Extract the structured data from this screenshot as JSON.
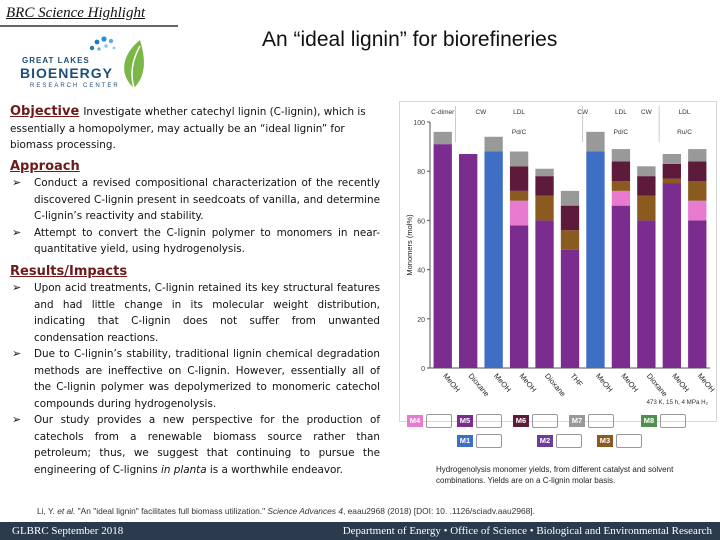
{
  "header": {
    "label": "BRC Science Highlight",
    "title": "An “ideal lignin” for biorefineries"
  },
  "logo": {
    "line1": "GREAT LAKES",
    "line2": "BIOENERGY",
    "line3": "RESEARCH CENTER"
  },
  "objective": {
    "heading": "Objective",
    "text": "Investigate whether catechyl lignin (C-lignin), which is essentially a homopolymer, may actually be an “ideal lignin” for biomass processing."
  },
  "approach": {
    "heading": "Approach",
    "bullets": [
      "Conduct a revised compositional characterization of the recently discovered C-lignin present in seedcoats of vanilla, and determine C-lignin’s reactivity and stability.",
      "Attempt to convert the C-lignin polymer to monomers in near-quantitative yield, using hydrogenolysis."
    ]
  },
  "results": {
    "heading": "Results/Impacts",
    "bullets": [
      "Upon acid treatments, C-lignin retained its key structural features and had little change in its molecular weight distribution, indicating that C-lignin does not suffer from unwanted condensation reactions.",
      "Due to C-lignin’s stability, traditional lignin chemical degradation methods are ineffective on C-lignin. However, essentially all of the C-lignin polymer was depolymerized to monomeric catechol compounds during hydrogenolysis.",
      "Our study provides a new perspective for the production of catechols from a renewable biomass source rather than petroleum; thus, we suggest that continuing to pursue the engineering of C-lignins "
    ],
    "last_italic": "in planta",
    "last_tail": " is a worthwhile endeavor."
  },
  "chart_data": {
    "type": "bar",
    "stacked": true,
    "ylabel": "Monomers (mol%)",
    "ylim": [
      0,
      100
    ],
    "yticks": [
      0,
      20,
      40,
      60,
      80,
      100
    ],
    "grid": false,
    "top_labels": [
      "C-dimer",
      "CW",
      "LDL",
      "CW",
      "LDL",
      "CW",
      "LDL"
    ],
    "group_labels": [
      "Pd/C",
      "Pd/C",
      "Ru/C"
    ],
    "categories": [
      "MeOH",
      "Dioxane",
      "MeOH",
      "MeOH",
      "Dioxane",
      "THF",
      "MeOH",
      "MeOH",
      "Dioxane",
      "MeOH",
      "MeOH"
    ],
    "series": [
      {
        "color": "#3f6fc4",
        "values": [
          0,
          0,
          88,
          0,
          0,
          0,
          88,
          0,
          0,
          0,
          0
        ]
      },
      {
        "color": "#7b2c8f",
        "values": [
          91,
          87,
          0,
          58,
          60,
          48,
          0,
          66,
          60,
          75,
          60
        ]
      },
      {
        "color": "#e87ad0",
        "values": [
          0,
          0,
          0,
          10,
          0,
          0,
          0,
          6,
          0,
          0,
          8
        ]
      },
      {
        "color": "#8a5a1e",
        "values": [
          0,
          0,
          0,
          4,
          10,
          8,
          0,
          4,
          10,
          2,
          8
        ]
      },
      {
        "color": "#5e1a3a",
        "values": [
          0,
          0,
          0,
          10,
          8,
          10,
          0,
          8,
          8,
          6,
          8
        ]
      },
      {
        "color": "#999999",
        "values": [
          5,
          0,
          6,
          6,
          3,
          6,
          8,
          5,
          4,
          4,
          5
        ]
      }
    ],
    "conditions": "473 K, 15 h, 4 MPa H₂"
  },
  "structures": {
    "labels": [
      "M4",
      "M5",
      "M6",
      "M7",
      "M8",
      "M1",
      "M2",
      "M3"
    ],
    "colors": [
      "#e87ad0",
      "#7b2c8f",
      "#5e1a3a",
      "#999999",
      "#4f8f4f",
      "#3f6fc4",
      "#6a3d9a",
      "#8a5a1e"
    ]
  },
  "caption": "Hydrogenolysis monomer yields, from different catalyst and solvent combinations. Yields are on a C-lignin molar basis.",
  "citation_prefix": "Li, Y. ",
  "citation_italic": "et al.",
  "citation_mid": " \"An \"ideal lignin\" facilitates full biomass utilization.\" ",
  "citation_journal": "Science Advances 4",
  "citation_tail": ", eaau2968 (2018) [DOI: 10. .1126/sciadv.aau2968].",
  "footer": {
    "left": "GLBRC September 2018",
    "right": "Department of Energy • Office of Science • Biological and Environmental Research"
  }
}
